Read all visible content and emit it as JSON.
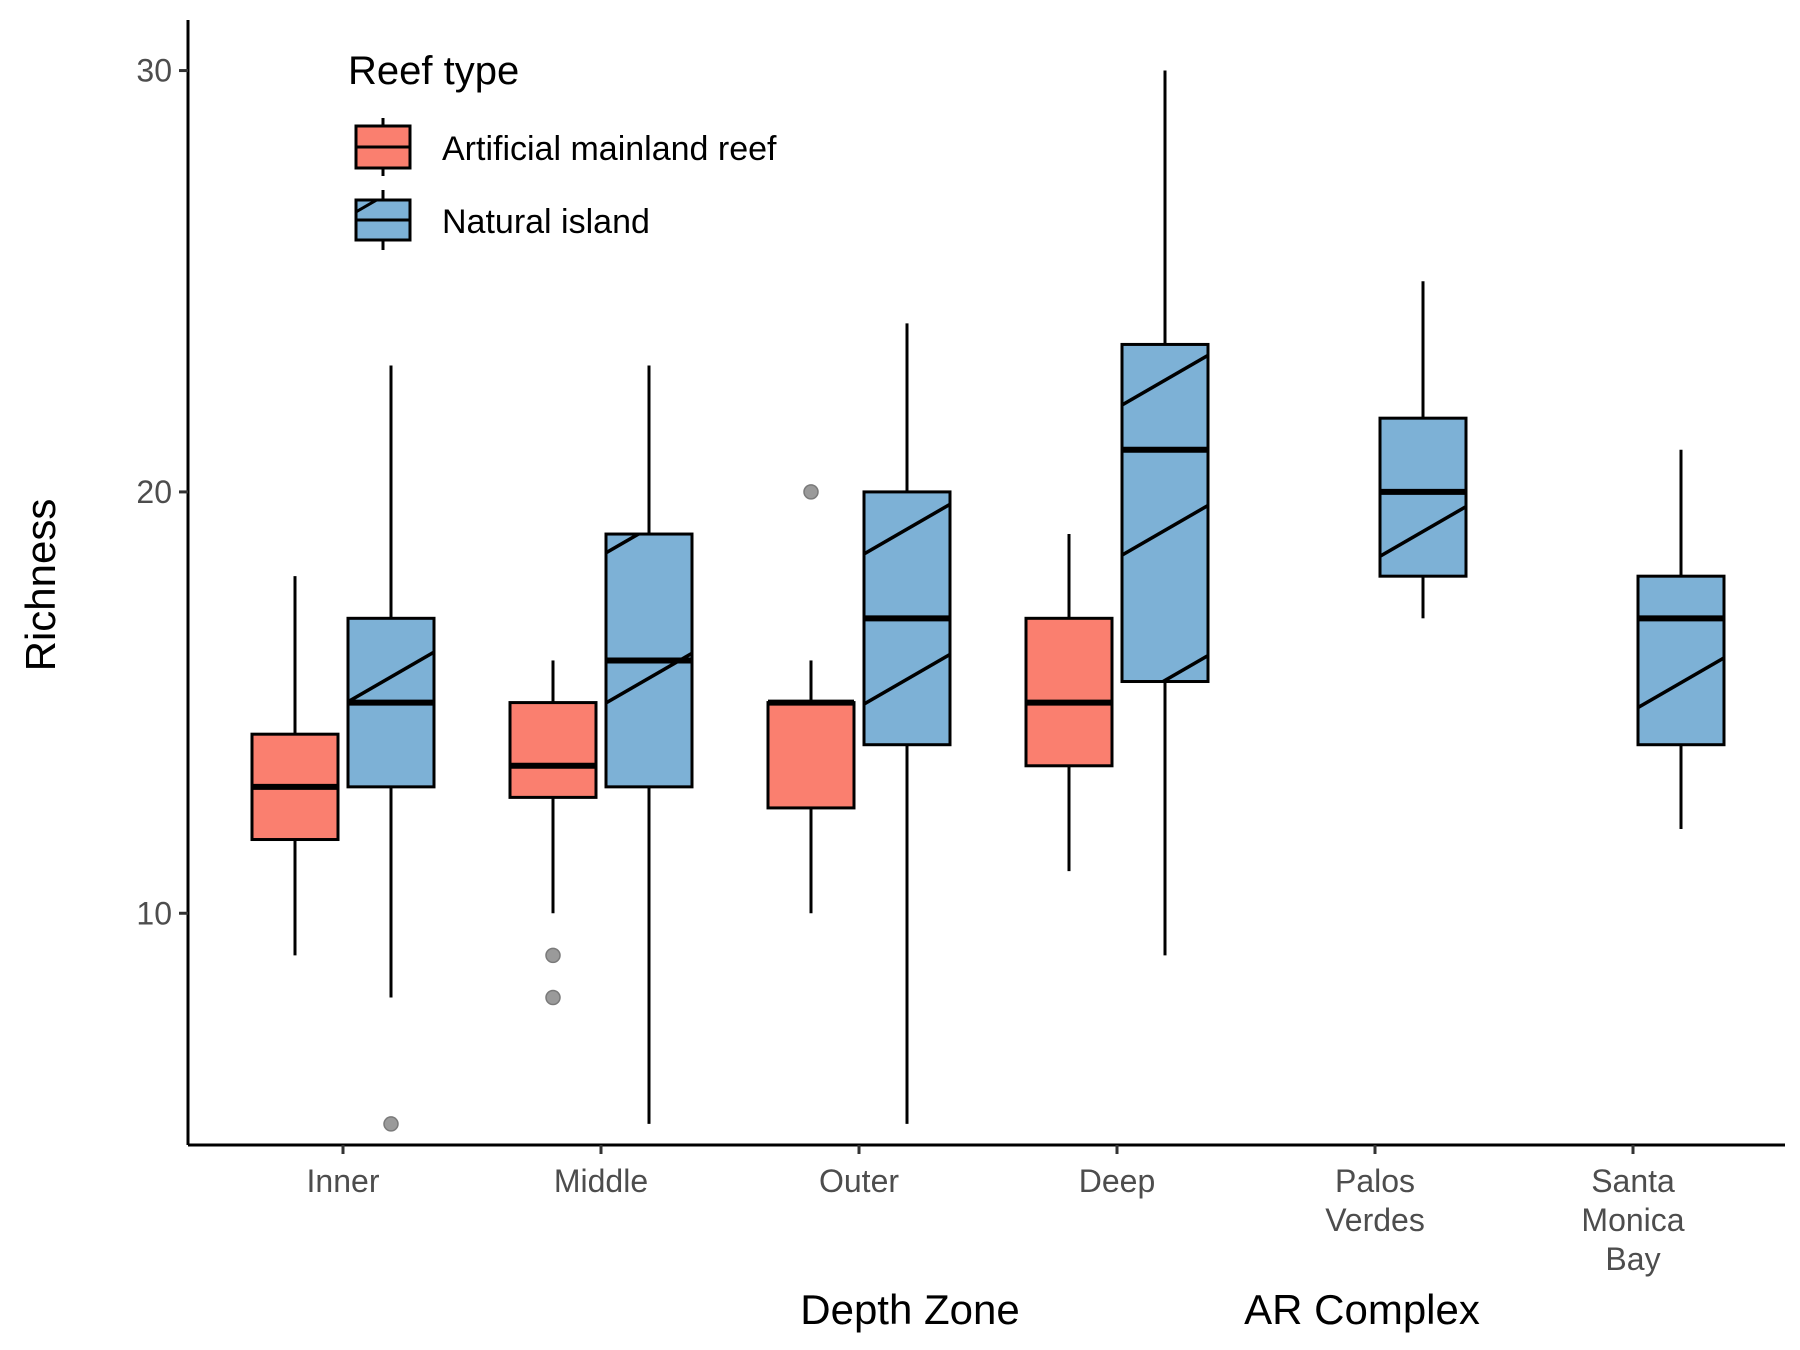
{
  "colors": {
    "artificial": "#FA7F6F",
    "natural": "#7DB1D6",
    "outline": "#000000",
    "outlier": "#9a9a9a"
  },
  "chart_data": {
    "type": "boxplot",
    "ylabel": "Richness",
    "ylim": [
      4.5,
      31.2
    ],
    "yticks": [
      10,
      20,
      30
    ],
    "categories": [
      "Inner",
      "Middle",
      "Outer",
      "Deep",
      "Palos Verdes",
      "Santa Monica Bay"
    ],
    "category_lines": [
      [
        "Inner"
      ],
      [
        "Middle"
      ],
      [
        "Outer"
      ],
      [
        "Deep"
      ],
      [
        "Palos",
        "Verdes"
      ],
      [
        "Santa",
        "Monica",
        "Bay"
      ]
    ],
    "group_labels": [
      "Depth Zone",
      "AR Complex"
    ],
    "legend": {
      "title": "Reef type",
      "position": "top-left",
      "entries": [
        "Artificial mainland reef",
        "Natural island"
      ]
    },
    "series": [
      {
        "name": "Artificial mainland reef",
        "pattern": "none",
        "boxes": [
          {
            "category": "Inner",
            "min": 9,
            "q1": 11.75,
            "median": 13,
            "q3": 14.25,
            "max": 18,
            "outliers": []
          },
          {
            "category": "Middle",
            "min": 10,
            "q1": 12.75,
            "median": 13.5,
            "q3": 15,
            "max": 16,
            "outliers": [
              9,
              8
            ]
          },
          {
            "category": "Outer",
            "min": 10,
            "q1": 12.5,
            "median": 15,
            "q3": 15,
            "max": 16,
            "outliers": [
              20
            ]
          },
          {
            "category": "Deep",
            "min": 11,
            "q1": 13.5,
            "median": 15,
            "q3": 17,
            "max": 19,
            "outliers": []
          }
        ]
      },
      {
        "name": "Natural island",
        "pattern": "stripe",
        "boxes": [
          {
            "category": "Inner",
            "min": 8,
            "q1": 13,
            "median": 15,
            "q3": 17,
            "max": 23,
            "outliers": [
              5
            ]
          },
          {
            "category": "Middle",
            "min": 5,
            "q1": 13,
            "median": 16,
            "q3": 19,
            "max": 23,
            "outliers": []
          },
          {
            "category": "Outer",
            "min": 5,
            "q1": 14,
            "median": 17,
            "q3": 20,
            "max": 24,
            "outliers": []
          },
          {
            "category": "Deep",
            "min": 9,
            "q1": 15.5,
            "median": 21,
            "q3": 23.5,
            "max": 30,
            "outliers": []
          },
          {
            "category": "Palos Verdes",
            "min": 17,
            "q1": 18,
            "median": 20,
            "q3": 21.75,
            "max": 25,
            "outliers": []
          },
          {
            "category": "Santa Monica Bay",
            "min": 12,
            "q1": 14,
            "median": 17,
            "q3": 18,
            "max": 21,
            "outliers": []
          }
        ]
      }
    ]
  }
}
